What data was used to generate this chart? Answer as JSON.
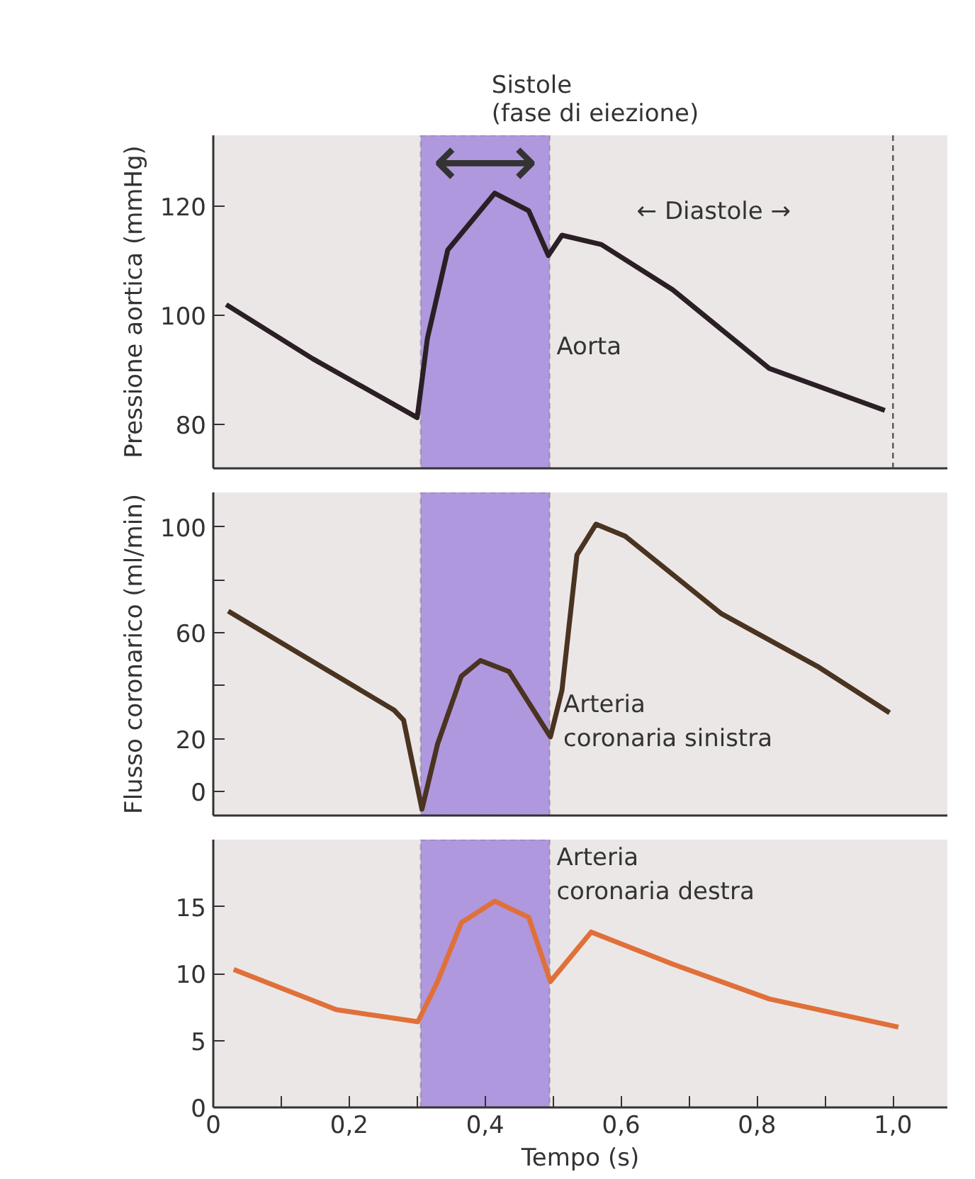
{
  "chart_data": [
    {
      "type": "line",
      "ylabel": "Pressione aortica (mmHg)",
      "xlim": [
        0,
        1.08
      ],
      "ylim": [
        72,
        133
      ],
      "yticks": [
        80,
        100,
        120
      ],
      "tick_labels": "y",
      "bands": [
        {
          "axis": "x",
          "from": 0.305,
          "to": 0.495,
          "label": "Sistole\n(fase di eiezione)",
          "color": "#a98fdb"
        }
      ],
      "ref_lines": [
        {
          "axis": "x",
          "value": 1.0,
          "line_style": "dashed"
        }
      ],
      "annotations": [
        "⟷",
        "←  Diastole  →"
      ],
      "series": [
        {
          "name": "Aorta",
          "color": "#2a1f24",
          "x": [
            0.019,
            0.146,
            0.3,
            0.315,
            0.345,
            0.414,
            0.464,
            0.493,
            0.513,
            0.571,
            0.676,
            0.818,
            0.988
          ],
          "values": [
            102,
            92.1,
            81.3,
            95.8,
            112,
            122.4,
            119.2,
            111,
            114.7,
            113,
            104.7,
            90.3,
            82.6
          ]
        }
      ]
    },
    {
      "type": "line",
      "ylabel": "Flusso coronarico (ml/min)",
      "xlim": [
        0,
        1.08
      ],
      "ylim": [
        -9,
        113
      ],
      "yticks": [
        0,
        20,
        {
          "value": 40,
          "label": null
        },
        60,
        {
          "value": 80,
          "label": null
        },
        100
      ],
      "tick_labels": "y",
      "bands": [
        {
          "axis": "x",
          "from": 0.305,
          "to": 0.495,
          "color": "#a98fdb"
        }
      ],
      "series": [
        {
          "name": "Arteria coronaria sinistra",
          "color": "#4a3320",
          "x": [
            0.022,
            0.266,
            0.28,
            0.307,
            0.33,
            0.365,
            0.393,
            0.435,
            0.496,
            0.513,
            0.535,
            0.563,
            0.606,
            0.747,
            0.889,
            0.995
          ],
          "values": [
            68.2,
            30.8,
            27,
            -6.6,
            18,
            43.6,
            49.5,
            45.4,
            20.7,
            38.3,
            89.4,
            101,
            96.5,
            67.3,
            47.3,
            29.8
          ]
        }
      ]
    },
    {
      "type": "line",
      "xlabel": "Tempo (s)",
      "xlim": [
        0,
        1.08
      ],
      "ylim": [
        0,
        20
      ],
      "yticks": [
        0,
        5,
        10,
        15
      ],
      "xticks": [
        {
          "value": 0,
          "label": "0"
        },
        {
          "value": 0.1,
          "label": null
        },
        {
          "value": 0.2,
          "label": "0,2"
        },
        {
          "value": 0.3,
          "label": null
        },
        {
          "value": 0.4,
          "label": "0,4"
        },
        {
          "value": 0.5,
          "label": null
        },
        {
          "value": 0.6,
          "label": "0,6"
        },
        {
          "value": 0.7,
          "label": null
        },
        {
          "value": 0.8,
          "label": "0,8"
        },
        {
          "value": 0.9,
          "label": null
        },
        {
          "value": 1.0,
          "label": "1,0"
        }
      ],
      "bands": [
        {
          "axis": "x",
          "from": 0.305,
          "to": 0.495,
          "color": "#a98fdb"
        }
      ],
      "series": [
        {
          "name": "Arteria coronaria destra",
          "color": "#e0703a",
          "x": [
            0.03,
            0.181,
            0.301,
            0.33,
            0.365,
            0.414,
            0.464,
            0.496,
            0.556,
            0.676,
            0.818,
            1.008
          ],
          "values": [
            10.3,
            7.3,
            6.4,
            9.4,
            13.8,
            15.4,
            14.2,
            9.4,
            13.1,
            10.7,
            8.1,
            6.0
          ]
        }
      ]
    }
  ]
}
